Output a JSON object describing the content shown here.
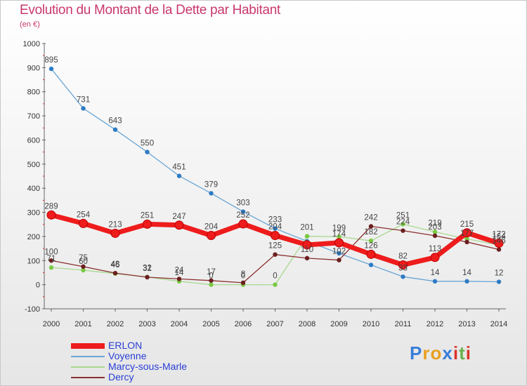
{
  "title": "Evolution du Montant de la Dette par Habitant",
  "subtitle": "(en €)",
  "logo": {
    "text": "Proxiti",
    "letters": [
      "P",
      "r",
      "o",
      "x",
      "i",
      "t",
      "i"
    ],
    "colors": [
      "#3a7dd8",
      "#e8a020",
      "#e8a020",
      "#3a7dd8",
      "#d9352b",
      "#6ab04c",
      "#d9352b"
    ]
  },
  "chart_data": {
    "type": "line",
    "x": [
      "2000",
      "2001",
      "2002",
      "2003",
      "2004",
      "2005",
      "2006",
      "2007",
      "2008",
      "2009",
      "2010",
      "2011",
      "2012",
      "2013",
      "2014"
    ],
    "ylim": [
      -100,
      1000
    ],
    "yticks": [
      "-100",
      "0",
      "100",
      "200",
      "300",
      "400",
      "500",
      "600",
      "700",
      "800",
      "900",
      "1000"
    ],
    "grid": false,
    "legend_position": "bottom-left",
    "series": [
      {
        "name": "ERLON",
        "color": "#ee1c1c",
        "marker": "#ee1c1c",
        "width": 7,
        "values": [
          289,
          254,
          213,
          251,
          247,
          204,
          252,
          204,
          165,
          174,
          126,
          82,
          113,
          215,
          172
        ],
        "labels": [
          "289",
          "254",
          "213",
          "251",
          "247",
          "204",
          "252",
          "204",
          "",
          "174",
          "126",
          "82",
          "113",
          "215",
          "172"
        ]
      },
      {
        "name": "Voyenne",
        "color": "#6aa6d6",
        "marker": "#2e7bc4",
        "width": 1.3,
        "values": [
          895,
          731,
          643,
          550,
          451,
          379,
          303,
          233,
          180,
          130,
          82,
          33,
          14,
          14,
          12
        ],
        "labels": [
          "895",
          "731",
          "643",
          "550",
          "451",
          "379",
          "303",
          "233",
          "",
          "",
          "",
          "33",
          "14",
          "14",
          "12"
        ]
      },
      {
        "name": "Marcy-sous-Marle",
        "color": "#a8d890",
        "marker": "#7ac943",
        "width": 1.3,
        "values": [
          71,
          60,
          46,
          32,
          14,
          0,
          0,
          0,
          201,
          199,
          182,
          251,
          219,
          190,
          164
        ],
        "labels": [
          "71",
          "60",
          "46",
          "32",
          "14",
          "0",
          "0",
          "0",
          "201",
          "199",
          "182",
          "251",
          "219",
          "",
          "164"
        ]
      },
      {
        "name": "Dercy",
        "color": "#8b3030",
        "marker": "#6b1f1f",
        "width": 1.3,
        "values": [
          100,
          75,
          48,
          31,
          24,
          17,
          8,
          125,
          110,
          102,
          242,
          224,
          203,
          177,
          146
        ],
        "labels": [
          "100",
          "75",
          "48",
          "31",
          "24",
          "17",
          "8",
          "125",
          "110",
          "102",
          "242",
          "224",
          "203",
          "177",
          "146"
        ]
      }
    ]
  }
}
